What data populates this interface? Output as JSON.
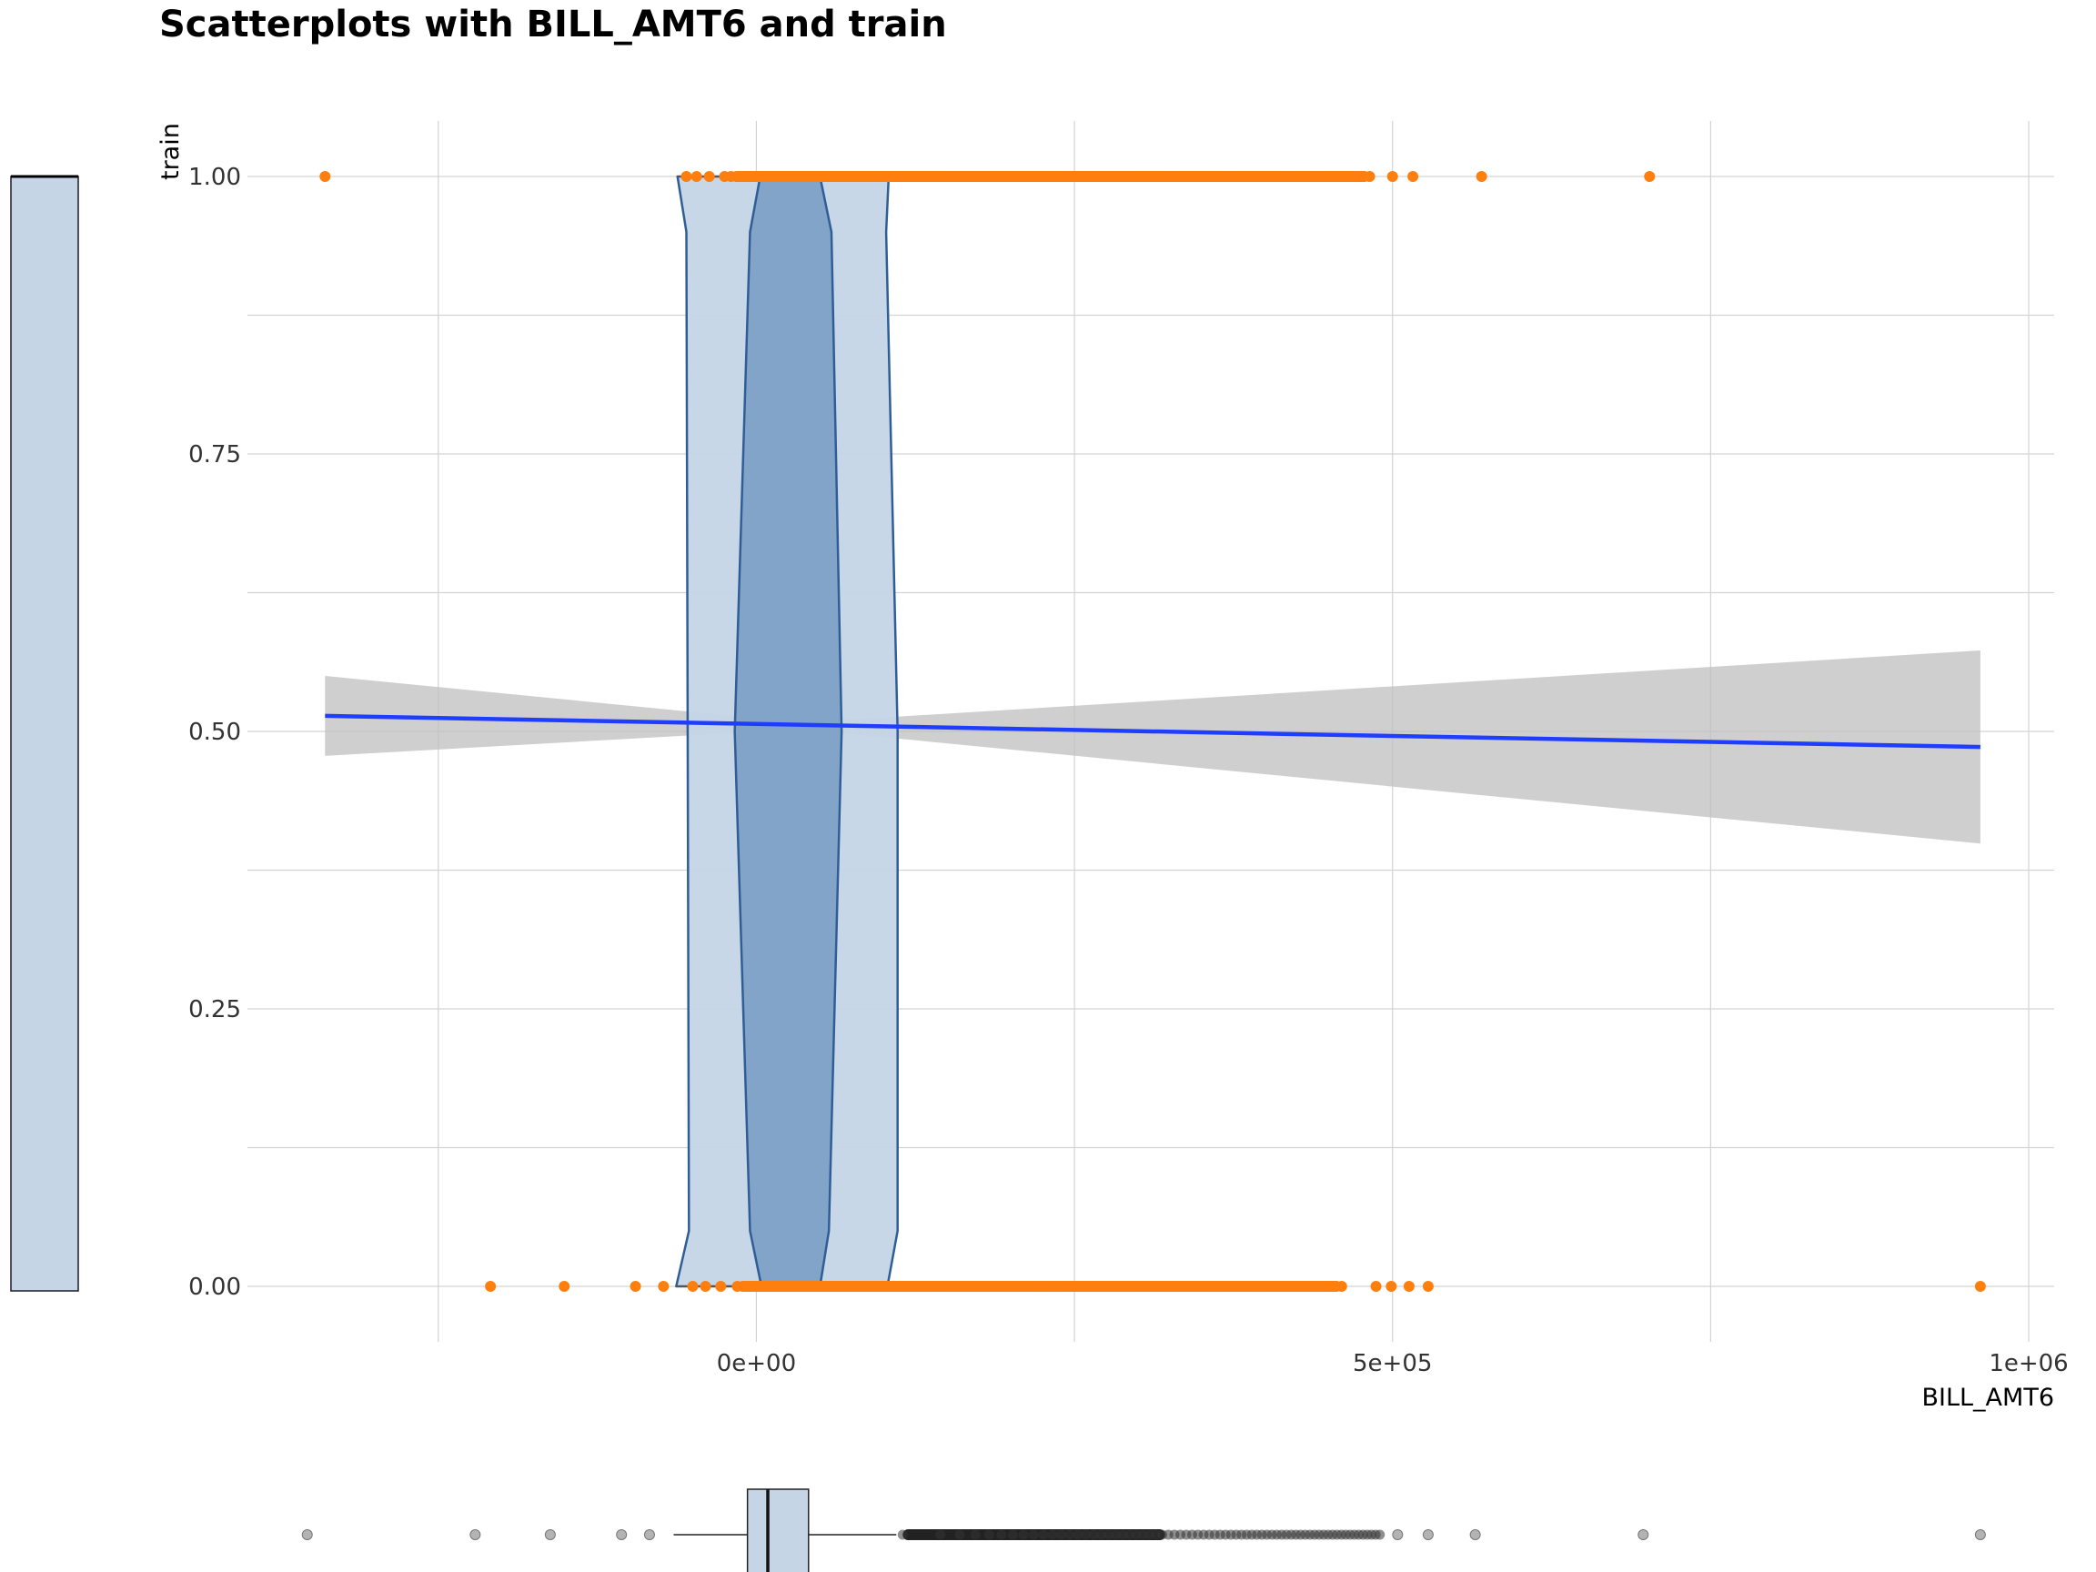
{
  "chart_data": {
    "type": "scatter",
    "title": "Scatterplots with BILL_AMT6 and train",
    "xlabel": "BILL_AMT6",
    "ylabel": "train",
    "xlim": [
      -400000,
      1020000
    ],
    "ylim": [
      -0.05,
      1.05
    ],
    "x_ticks": [
      {
        "value": 0,
        "label": "0e+00"
      },
      {
        "value": 500000,
        "label": "5e+05"
      },
      {
        "value": 1000000,
        "label": "1e+06"
      }
    ],
    "y_ticks": [
      {
        "value": 0,
        "label": "0.00"
      },
      {
        "value": 0.25,
        "label": "0.25"
      },
      {
        "value": 0.5,
        "label": "0.50"
      },
      {
        "value": 0.75,
        "label": "0.75"
      },
      {
        "value": 1,
        "label": "1.00"
      }
    ],
    "x_minor_grid": [
      -250000,
      250000,
      750000
    ],
    "y_minor_grid": [
      0.125,
      0.375,
      0.625,
      0.875
    ],
    "grid": true,
    "colors": {
      "points": "#ff7f0e",
      "fit_line": "#1f3dff",
      "confidence_band": "#bfbfbf",
      "violin_fill": "#c5d5e6",
      "violin_stroke": "#2f5e96",
      "box_fill": "#7ea1c6",
      "outliers": "#999999",
      "text": "#333333",
      "grid": "#d3d3d3"
    },
    "series": [
      {
        "type": "scatter",
        "y": 1,
        "isolated_x": [
          -339000,
          -55000,
          -47000,
          -37000,
          -25000,
          500000,
          516000,
          570000,
          702000
        ],
        "dense_range": [
          -20000,
          482000
        ]
      },
      {
        "type": "scatter",
        "y": 0,
        "isolated_x": [
          -209000,
          -151000,
          -95000,
          -73000,
          -50000,
          -40000,
          -28000,
          487000,
          499000,
          513000,
          528000,
          962000
        ],
        "dense_range": [
          -15000,
          460000
        ]
      },
      {
        "type": "line",
        "x": [
          -339000,
          962000
        ],
        "y": [
          0.514,
          0.486
        ]
      },
      {
        "type": "area",
        "x": [
          -339000,
          35000,
          962000
        ],
        "upper": [
          0.55,
          0.508,
          0.573
        ],
        "lower": [
          0.478,
          0.502,
          0.399
        ]
      }
    ],
    "violin": {
      "outer": {
        "x_min": [
          -62000,
          -55000,
          -54000,
          -53000,
          -63000
        ],
        "x_max": [
          104000,
          102000,
          111000,
          111000,
          103000
        ],
        "y": [
          1.0,
          0.95,
          0.5,
          0.05,
          0.0
        ]
      },
      "inner": {
        "x_min": [
          3000,
          -5000,
          -17000,
          -5000,
          4000
        ],
        "x_max": [
          50000,
          59000,
          67000,
          57000,
          50000
        ],
        "y": [
          1.0,
          0.95,
          0.5,
          0.05,
          0.0
        ]
      }
    },
    "marginal_boxplot_x": {
      "min": -65000,
      "q1": -7000,
      "median": 9000,
      "q3": 41000,
      "whisker_high": 110000,
      "outliers_isolated": [
        -353000,
        -221000,
        -162000,
        -106000,
        -84000,
        504000,
        528000,
        565000,
        697000,
        962000
      ],
      "outliers_dense_range": [
        115000,
        490000
      ]
    },
    "marginal_bar_y": {
      "y_min": 0,
      "y_max": 1
    }
  }
}
